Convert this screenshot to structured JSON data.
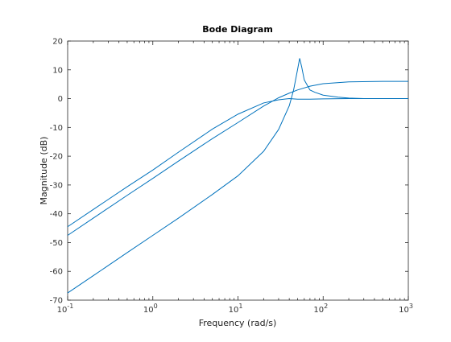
{
  "chart_data": {
    "type": "line",
    "title": "Bode Diagram",
    "xlabel": "Frequency  (rad/s)",
    "ylabel": "Magnitude (dB)",
    "xscale": "log",
    "xlim": [
      0.1,
      1000
    ],
    "ylim": [
      -70,
      20
    ],
    "x_ticks": [
      {
        "value": 0.1,
        "base": "10",
        "exp": "-1"
      },
      {
        "value": 1,
        "base": "10",
        "exp": "0"
      },
      {
        "value": 10,
        "base": "10",
        "exp": "1"
      },
      {
        "value": 100,
        "base": "10",
        "exp": "2"
      },
      {
        "value": 1000,
        "base": "10",
        "exp": "3"
      }
    ],
    "y_ticks": [
      20,
      10,
      0,
      -10,
      -20,
      -30,
      -40,
      -50,
      -60,
      -70
    ],
    "grid": false,
    "line_color": "#0072bd",
    "series": [
      {
        "x": [
          0.1,
          0.2,
          0.5,
          1,
          2,
          5,
          10,
          20,
          30,
          40,
          50,
          70,
          100,
          200,
          500,
          1000
        ],
        "values": [
          -44.5,
          -38.5,
          -30.6,
          -24.8,
          -18.6,
          -10.6,
          -5.4,
          -1.5,
          -0.4,
          0.0,
          -0.2,
          -0.2,
          -0.1,
          0.0,
          0.0,
          0.0
        ]
      },
      {
        "x": [
          0.1,
          0.2,
          0.5,
          1,
          2,
          5,
          10,
          20,
          30,
          40,
          50,
          70,
          100,
          200,
          500,
          1000
        ],
        "values": [
          -47.5,
          -41.5,
          -33.6,
          -27.7,
          -21.7,
          -13.9,
          -8.3,
          -2.6,
          0.3,
          1.9,
          3.0,
          4.3,
          5.2,
          5.8,
          6.0,
          6.0
        ]
      },
      {
        "x": [
          0.1,
          0.2,
          0.5,
          1,
          2,
          5,
          10,
          20,
          30,
          40,
          45,
          50,
          53,
          56,
          60,
          70,
          80,
          100,
          150,
          200,
          300,
          500,
          1000
        ],
        "values": [
          -67.5,
          -61.5,
          -53.5,
          -47.5,
          -41.5,
          -33.3,
          -26.8,
          -18.3,
          -10.7,
          -2.5,
          3.0,
          10.0,
          14.0,
          11.0,
          6.5,
          3.0,
          2.2,
          1.2,
          0.5,
          0.2,
          0.0,
          0.0,
          0.0
        ]
      }
    ]
  }
}
